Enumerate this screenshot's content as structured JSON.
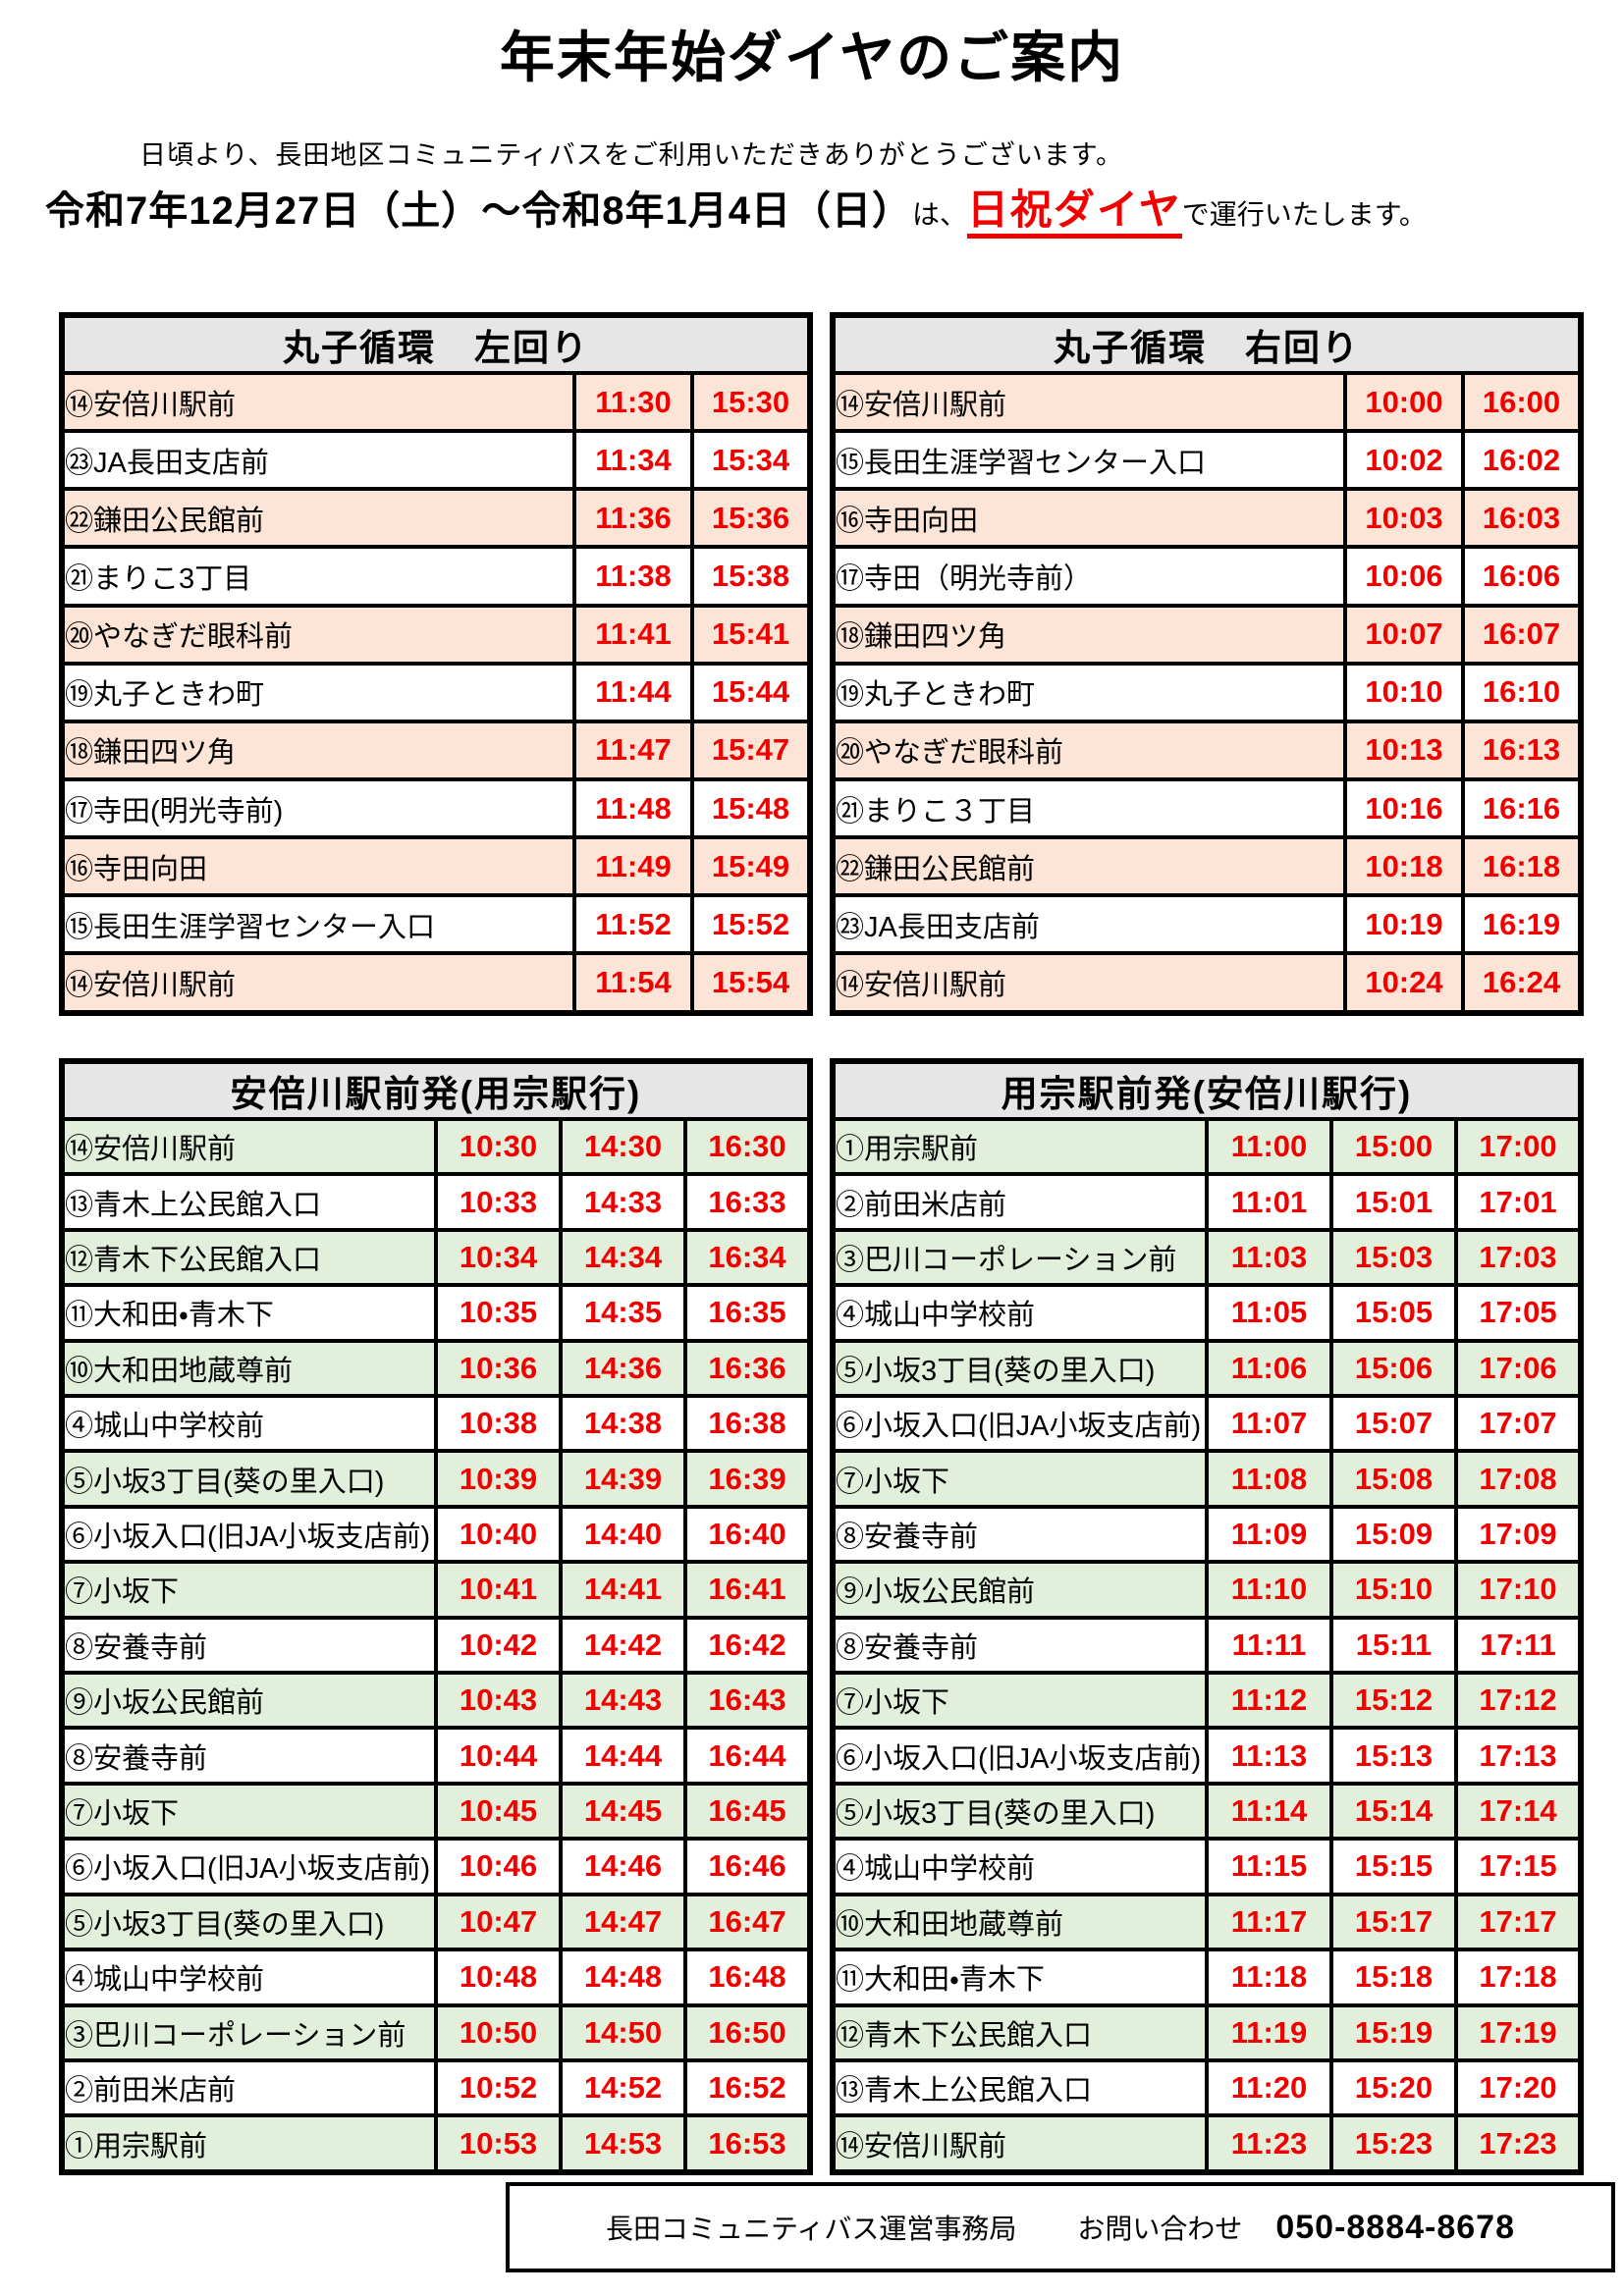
{
  "page": {
    "title": "年末年始ダイヤのご案内",
    "greeting": "日頃より、長田地区コミュニティバスをご利用いただきありがとうございます。",
    "notice": {
      "period": "令和7年12月27日（土）～令和8年1月4日（日）",
      "mid": "は、",
      "highlight": "日祝ダイヤ",
      "tail": "で運行いたします。"
    },
    "footer": {
      "office": "長田コミュニティバス運営事務局",
      "contact_label": "お問い合わせ",
      "phone": "050-8884-8678"
    },
    "colors": {
      "time_text": "#f20000",
      "highlight_red": "#f20000",
      "peach_row": "#fce4d6",
      "green_row": "#e2efda",
      "header_bg": "#e7e6e6",
      "white_row": "#ffffff"
    }
  },
  "tables": [
    {
      "title": "丸子循環　左回り",
      "row_tint": "#fce4d6",
      "time_columns": 2,
      "rows": [
        {
          "stop": "⑭安倍川駅前",
          "times": [
            "11:30",
            "15:30"
          ]
        },
        {
          "stop": "㉓JA長田支店前",
          "times": [
            "11:34",
            "15:34"
          ]
        },
        {
          "stop": "㉒鎌田公民館前",
          "times": [
            "11:36",
            "15:36"
          ]
        },
        {
          "stop": "㉑まりこ3丁目",
          "times": [
            "11:38",
            "15:38"
          ]
        },
        {
          "stop": "⑳やなぎだ眼科前",
          "times": [
            "11:41",
            "15:41"
          ]
        },
        {
          "stop": "⑲丸子ときわ町",
          "times": [
            "11:44",
            "15:44"
          ]
        },
        {
          "stop": "⑱鎌田四ツ角",
          "times": [
            "11:47",
            "15:47"
          ]
        },
        {
          "stop": "⑰寺田(明光寺前)",
          "times": [
            "11:48",
            "15:48"
          ]
        },
        {
          "stop": "⑯寺田向田",
          "times": [
            "11:49",
            "15:49"
          ]
        },
        {
          "stop": "⑮長田生涯学習センター入口",
          "times": [
            "11:52",
            "15:52"
          ]
        },
        {
          "stop": "⑭安倍川駅前",
          "times": [
            "11:54",
            "15:54"
          ]
        }
      ]
    },
    {
      "title": "丸子循環　右回り",
      "row_tint": "#fce4d6",
      "time_columns": 2,
      "rows": [
        {
          "stop": "⑭安倍川駅前",
          "times": [
            "10:00",
            "16:00"
          ]
        },
        {
          "stop": "⑮長田生涯学習センター入口",
          "times": [
            "10:02",
            "16:02"
          ]
        },
        {
          "stop": "⑯寺田向田",
          "times": [
            "10:03",
            "16:03"
          ]
        },
        {
          "stop": "⑰寺田（明光寺前）",
          "times": [
            "10:06",
            "16:06"
          ]
        },
        {
          "stop": "⑱鎌田四ツ角",
          "times": [
            "10:07",
            "16:07"
          ]
        },
        {
          "stop": "⑲丸子ときわ町",
          "times": [
            "10:10",
            "16:10"
          ]
        },
        {
          "stop": "⑳やなぎだ眼科前",
          "times": [
            "10:13",
            "16:13"
          ]
        },
        {
          "stop": "㉑まりこ３丁目",
          "times": [
            "10:16",
            "16:16"
          ]
        },
        {
          "stop": "㉒鎌田公民館前",
          "times": [
            "10:18",
            "16:18"
          ]
        },
        {
          "stop": "㉓JA長田支店前",
          "times": [
            "10:19",
            "16:19"
          ]
        },
        {
          "stop": "⑭安倍川駅前",
          "times": [
            "10:24",
            "16:24"
          ]
        }
      ]
    },
    {
      "title": "安倍川駅前発(用宗駅行)",
      "row_tint": "#e2efda",
      "time_columns": 3,
      "rows": [
        {
          "stop": "⑭安倍川駅前",
          "times": [
            "10:30",
            "14:30",
            "16:30"
          ]
        },
        {
          "stop": "⑬青木上公民館入口",
          "times": [
            "10:33",
            "14:33",
            "16:33"
          ]
        },
        {
          "stop": "⑫青木下公民館入口",
          "times": [
            "10:34",
            "14:34",
            "16:34"
          ]
        },
        {
          "stop": "⑪大和田・青木下",
          "times": [
            "10:35",
            "14:35",
            "16:35"
          ]
        },
        {
          "stop": "⑩大和田地蔵尊前",
          "times": [
            "10:36",
            "14:36",
            "16:36"
          ]
        },
        {
          "stop": "④城山中学校前",
          "times": [
            "10:38",
            "14:38",
            "16:38"
          ]
        },
        {
          "stop": "⑤小坂3丁目(葵の里入口)",
          "times": [
            "10:39",
            "14:39",
            "16:39"
          ]
        },
        {
          "stop": "⑥小坂入口(旧JA小坂支店前)",
          "times": [
            "10:40",
            "14:40",
            "16:40"
          ]
        },
        {
          "stop": "⑦小坂下",
          "times": [
            "10:41",
            "14:41",
            "16:41"
          ]
        },
        {
          "stop": "⑧安養寺前",
          "times": [
            "10:42",
            "14:42",
            "16:42"
          ]
        },
        {
          "stop": "⑨小坂公民館前",
          "times": [
            "10:43",
            "14:43",
            "16:43"
          ]
        },
        {
          "stop": "⑧安養寺前",
          "times": [
            "10:44",
            "14:44",
            "16:44"
          ]
        },
        {
          "stop": "⑦小坂下",
          "times": [
            "10:45",
            "14:45",
            "16:45"
          ]
        },
        {
          "stop": "⑥小坂入口(旧JA小坂支店前)",
          "times": [
            "10:46",
            "14:46",
            "16:46"
          ]
        },
        {
          "stop": "⑤小坂3丁目(葵の里入口)",
          "times": [
            "10:47",
            "14:47",
            "16:47"
          ]
        },
        {
          "stop": "④城山中学校前",
          "times": [
            "10:48",
            "14:48",
            "16:48"
          ]
        },
        {
          "stop": "③巴川コーポレーション前",
          "times": [
            "10:50",
            "14:50",
            "16:50"
          ]
        },
        {
          "stop": "②前田米店前",
          "times": [
            "10:52",
            "14:52",
            "16:52"
          ]
        },
        {
          "stop": "①用宗駅前",
          "times": [
            "10:53",
            "14:53",
            "16:53"
          ]
        }
      ]
    },
    {
      "title": "用宗駅前発(安倍川駅行)",
      "row_tint": "#e2efda",
      "time_columns": 3,
      "rows": [
        {
          "stop": "①用宗駅前",
          "times": [
            "11:00",
            "15:00",
            "17:00"
          ]
        },
        {
          "stop": "②前田米店前",
          "times": [
            "11:01",
            "15:01",
            "17:01"
          ]
        },
        {
          "stop": "③巴川コーポレーション前",
          "times": [
            "11:03",
            "15:03",
            "17:03"
          ]
        },
        {
          "stop": "④城山中学校前",
          "times": [
            "11:05",
            "15:05",
            "17:05"
          ]
        },
        {
          "stop": "⑤小坂3丁目(葵の里入口)",
          "times": [
            "11:06",
            "15:06",
            "17:06"
          ]
        },
        {
          "stop": "⑥小坂入口(旧JA小坂支店前)",
          "times": [
            "11:07",
            "15:07",
            "17:07"
          ]
        },
        {
          "stop": "⑦小坂下",
          "times": [
            "11:08",
            "15:08",
            "17:08"
          ]
        },
        {
          "stop": "⑧安養寺前",
          "times": [
            "11:09",
            "15:09",
            "17:09"
          ]
        },
        {
          "stop": "⑨小坂公民館前",
          "times": [
            "11:10",
            "15:10",
            "17:10"
          ]
        },
        {
          "stop": "⑧安養寺前",
          "times": [
            "11:11",
            "15:11",
            "17:11"
          ]
        },
        {
          "stop": "⑦小坂下",
          "times": [
            "11:12",
            "15:12",
            "17:12"
          ]
        },
        {
          "stop": "⑥小坂入口(旧JA小坂支店前)",
          "times": [
            "11:13",
            "15:13",
            "17:13"
          ]
        },
        {
          "stop": "⑤小坂3丁目(葵の里入口)",
          "times": [
            "11:14",
            "15:14",
            "17:14"
          ]
        },
        {
          "stop": "④城山中学校前",
          "times": [
            "11:15",
            "15:15",
            "17:15"
          ]
        },
        {
          "stop": "⑩大和田地蔵尊前",
          "times": [
            "11:17",
            "15:17",
            "17:17"
          ]
        },
        {
          "stop": "⑪大和田・青木下",
          "times": [
            "11:18",
            "15:18",
            "17:18"
          ]
        },
        {
          "stop": "⑫青木下公民館入口",
          "times": [
            "11:19",
            "15:19",
            "17:19"
          ]
        },
        {
          "stop": "⑬青木上公民館入口",
          "times": [
            "11:20",
            "15:20",
            "17:20"
          ]
        },
        {
          "stop": "⑭安倍川駅前",
          "times": [
            "11:23",
            "15:23",
            "17:23"
          ]
        }
      ]
    }
  ]
}
